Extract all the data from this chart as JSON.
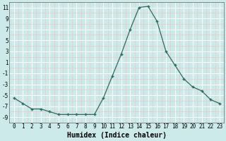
{
  "x": [
    0,
    1,
    2,
    3,
    4,
    5,
    6,
    7,
    8,
    9,
    10,
    11,
    12,
    13,
    14,
    15,
    16,
    17,
    18,
    19,
    20,
    21,
    22,
    23
  ],
  "y": [
    -5.5,
    -6.5,
    -7.5,
    -7.5,
    -8.0,
    -8.5,
    -8.5,
    -8.5,
    -8.5,
    -8.5,
    -5.5,
    -1.5,
    2.5,
    7.0,
    11.0,
    11.2,
    8.5,
    3.0,
    0.5,
    -2.0,
    -3.5,
    -4.2,
    -5.8,
    -6.5
  ],
  "line_color": "#2e6b5e",
  "marker": "+",
  "marker_size": 3.5,
  "marker_linewidth": 1.0,
  "bg_color": "#cdeaea",
  "grid_major_color": "#ffffff",
  "grid_minor_color": "#e8c8c8",
  "xlabel": "Humidex (Indice chaleur)",
  "xlabel_fontsize": 7,
  "xlabel_fontweight": "bold",
  "ylim": [
    -10,
    12
  ],
  "xlim": [
    -0.5,
    23.5
  ],
  "yticks": [
    -9,
    -7,
    -5,
    -3,
    -1,
    1,
    3,
    5,
    7,
    9,
    11
  ],
  "xticks": [
    0,
    1,
    2,
    3,
    4,
    5,
    6,
    7,
    8,
    9,
    10,
    11,
    12,
    13,
    14,
    15,
    16,
    17,
    18,
    19,
    20,
    21,
    22,
    23
  ],
  "tick_fontsize": 5.5,
  "linewidth": 0.9
}
